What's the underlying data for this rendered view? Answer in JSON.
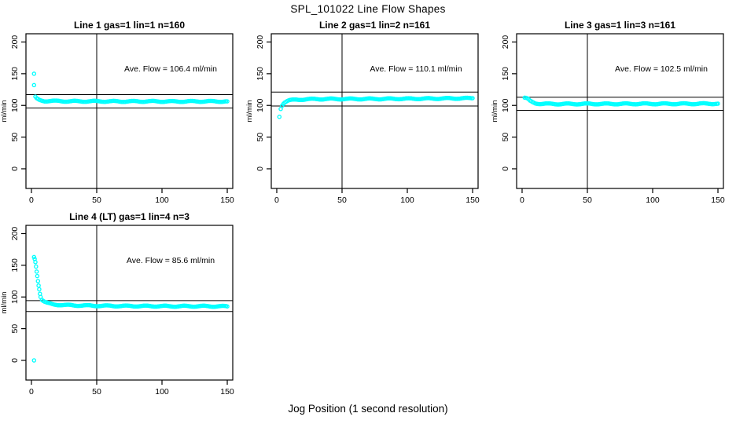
{
  "page_title": "SPL_101022  Line Flow Shapes",
  "xlabel": "Jog Position (1 second resolution)",
  "point_color": "#00FFFF",
  "line_color": "#000000",
  "chart_data": [
    {
      "type": "scatter",
      "title": "Line 1 gas=1 lin=1 n=160",
      "ylabel": "ml/min",
      "ave_flow_label": "Ave. Flow =  106.4  ml/min",
      "ave_flow": 106.4,
      "xticks": [
        0,
        50,
        100,
        150
      ],
      "yticks": [
        0,
        50,
        100,
        150,
        200
      ],
      "xlim": [
        -4.2,
        154.2
      ],
      "ylim": [
        -31,
        213
      ],
      "ref_vline_x": 50,
      "ref_hlines_y": [
        117.0,
        95.8
      ],
      "extra_points": [
        [
          2,
          150
        ],
        [
          2,
          132
        ]
      ],
      "curve_keypoints": [
        [
          3,
          113
        ],
        [
          4,
          110.5
        ],
        [
          5,
          109.5
        ],
        [
          6,
          108.5
        ],
        [
          8,
          107.5
        ],
        [
          10,
          107
        ],
        [
          15,
          107
        ],
        [
          20,
          106.8
        ],
        [
          30,
          106.5
        ],
        [
          50,
          106.5
        ],
        [
          70,
          106.3
        ],
        [
          90,
          106.4
        ],
        [
          110,
          106.2
        ],
        [
          130,
          106.4
        ],
        [
          150,
          106.3
        ]
      ],
      "x_step": 1
    },
    {
      "type": "scatter",
      "title": "Line 2 gas=1 lin=2 n=161",
      "ylabel": "ml/min",
      "ave_flow_label": "Ave. Flow =  110.1  ml/min",
      "ave_flow": 110.1,
      "xticks": [
        0,
        50,
        100,
        150
      ],
      "yticks": [
        0,
        50,
        100,
        150,
        200
      ],
      "xlim": [
        -4.2,
        154.2
      ],
      "ylim": [
        -31,
        213
      ],
      "ref_vline_x": 50,
      "ref_hlines_y": [
        121.1,
        99.1
      ],
      "extra_points": [
        [
          2,
          82
        ]
      ],
      "curve_keypoints": [
        [
          3,
          95
        ],
        [
          4,
          100
        ],
        [
          5,
          103
        ],
        [
          6,
          105
        ],
        [
          8,
          107
        ],
        [
          10,
          108
        ],
        [
          15,
          109
        ],
        [
          20,
          109.5
        ],
        [
          30,
          110
        ],
        [
          50,
          110.2
        ],
        [
          70,
          110.2
        ],
        [
          90,
          110.4
        ],
        [
          110,
          110.6
        ],
        [
          130,
          111
        ],
        [
          150,
          111.3
        ]
      ],
      "x_step": 1
    },
    {
      "type": "scatter",
      "title": "Line 3 gas=1 lin=3 n=161",
      "ylabel": "ml/min",
      "ave_flow_label": "Ave. Flow =  102.5  ml/min",
      "ave_flow": 102.5,
      "xticks": [
        0,
        50,
        100,
        150
      ],
      "yticks": [
        0,
        50,
        100,
        150,
        200
      ],
      "xlim": [
        -4.2,
        154.2
      ],
      "ylim": [
        -31,
        213
      ],
      "ref_vline_x": 50,
      "ref_hlines_y": [
        112.8,
        92.3
      ],
      "extra_points": [],
      "curve_keypoints": [
        [
          2,
          112
        ],
        [
          3,
          111.5
        ],
        [
          4,
          110.5
        ],
        [
          5,
          109
        ],
        [
          6,
          107
        ],
        [
          8,
          105
        ],
        [
          10,
          103.5
        ],
        [
          13,
          102.8
        ],
        [
          16,
          102.5
        ],
        [
          20,
          102.4
        ],
        [
          30,
          102.3
        ],
        [
          50,
          102.4
        ],
        [
          70,
          102.4
        ],
        [
          90,
          102.5
        ],
        [
          110,
          102.5
        ],
        [
          130,
          102.6
        ],
        [
          150,
          102.8
        ]
      ],
      "x_step": 1
    },
    {
      "type": "scatter",
      "title": "Line 4 (LT) gas=1 lin=4 n=3",
      "ylabel": "ml/min",
      "ave_flow_label": "Ave. Flow =  85.6  ml/min",
      "ave_flow": 85.6,
      "xticks": [
        0,
        50,
        100,
        150
      ],
      "yticks": [
        0,
        50,
        100,
        150,
        200
      ],
      "xlim": [
        -4.2,
        154.2
      ],
      "ylim": [
        -31,
        213
      ],
      "ref_vline_x": 50,
      "ref_hlines_y": [
        94.2,
        77.0
      ],
      "extra_points": [
        [
          2,
          0
        ],
        [
          2,
          163
        ],
        [
          2.5,
          160
        ],
        [
          3,
          155
        ],
        [
          3.5,
          148
        ],
        [
          4,
          140
        ],
        [
          4.5,
          133
        ],
        [
          5,
          125
        ],
        [
          5.5,
          118
        ],
        [
          6,
          112
        ],
        [
          6.5,
          105
        ],
        [
          7,
          100
        ]
      ],
      "curve_keypoints": [
        [
          8,
          96
        ],
        [
          9,
          94
        ],
        [
          10,
          92.5
        ],
        [
          12,
          90.5
        ],
        [
          14,
          89.5
        ],
        [
          16,
          88.5
        ],
        [
          20,
          87.8
        ],
        [
          25,
          87.2
        ],
        [
          30,
          87
        ],
        [
          40,
          86.5
        ],
        [
          50,
          86.2
        ],
        [
          70,
          85.8
        ],
        [
          90,
          85.6
        ],
        [
          110,
          85.4
        ],
        [
          130,
          85.5
        ],
        [
          150,
          85.2
        ]
      ],
      "x_step": 1
    }
  ]
}
